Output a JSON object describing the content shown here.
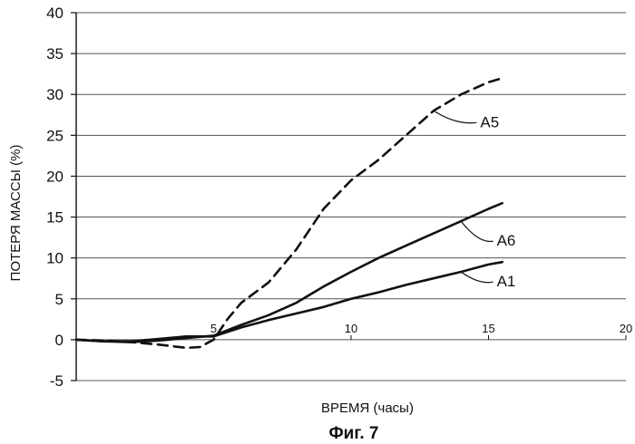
{
  "chart_data": {
    "type": "line",
    "title": "",
    "caption": "Фиг. 7",
    "xlabel": "ВРЕМЯ (часы)",
    "ylabel": "ПОТЕРЯ МАССЫ (%)",
    "xlim": [
      0,
      20
    ],
    "ylim": [
      -5,
      40
    ],
    "y_ticks": [
      "40",
      "35",
      "30",
      "25",
      "20",
      "15",
      "10",
      "5",
      "0",
      "-5"
    ],
    "x_ticks": [
      "5",
      "10",
      "15",
      "20"
    ],
    "grid": "horizontal",
    "legend": "inline labels with leader lines",
    "series": [
      {
        "name": "A5",
        "style": "dashed",
        "x": [
          0,
          1,
          2,
          3,
          3.5,
          4,
          4.5,
          5,
          5.5,
          6,
          7,
          8,
          9,
          10,
          11,
          12,
          13,
          14,
          15,
          15.5
        ],
        "y": [
          0,
          -0.1,
          -0.3,
          -0.6,
          -0.8,
          -1.0,
          -0.9,
          0,
          2.5,
          4.5,
          7,
          11,
          16,
          19.5,
          22,
          25,
          28,
          30,
          31.5,
          32
        ]
      },
      {
        "name": "A6",
        "style": "solid",
        "x": [
          0,
          1,
          2,
          3,
          4,
          5,
          6,
          7,
          8,
          9,
          10,
          11,
          12,
          13,
          14,
          15,
          15.5
        ],
        "y": [
          0,
          -0.2,
          -0.3,
          -0.1,
          0.2,
          0.5,
          1.8,
          3.0,
          4.5,
          6.5,
          8.3,
          10,
          11.5,
          13,
          14.5,
          16,
          16.7
        ]
      },
      {
        "name": "A1",
        "style": "solid",
        "x": [
          0,
          1,
          2,
          3,
          4,
          5,
          6,
          7,
          8,
          9,
          10,
          11,
          12,
          13,
          14,
          15,
          15.5
        ],
        "y": [
          0,
          -0.2,
          -0.2,
          0.1,
          0.4,
          0.4,
          1.5,
          2.4,
          3.2,
          4.0,
          5.0,
          5.8,
          6.7,
          7.5,
          8.3,
          9.2,
          9.5
        ]
      }
    ],
    "labels": [
      {
        "text": "A5",
        "series": "A5",
        "at": [
          14.7,
          26
        ]
      },
      {
        "text": "A6",
        "series": "A6",
        "at": [
          15.3,
          11.5
        ]
      },
      {
        "text": "A1",
        "series": "A1",
        "at": [
          15.3,
          6.5
        ]
      }
    ]
  }
}
